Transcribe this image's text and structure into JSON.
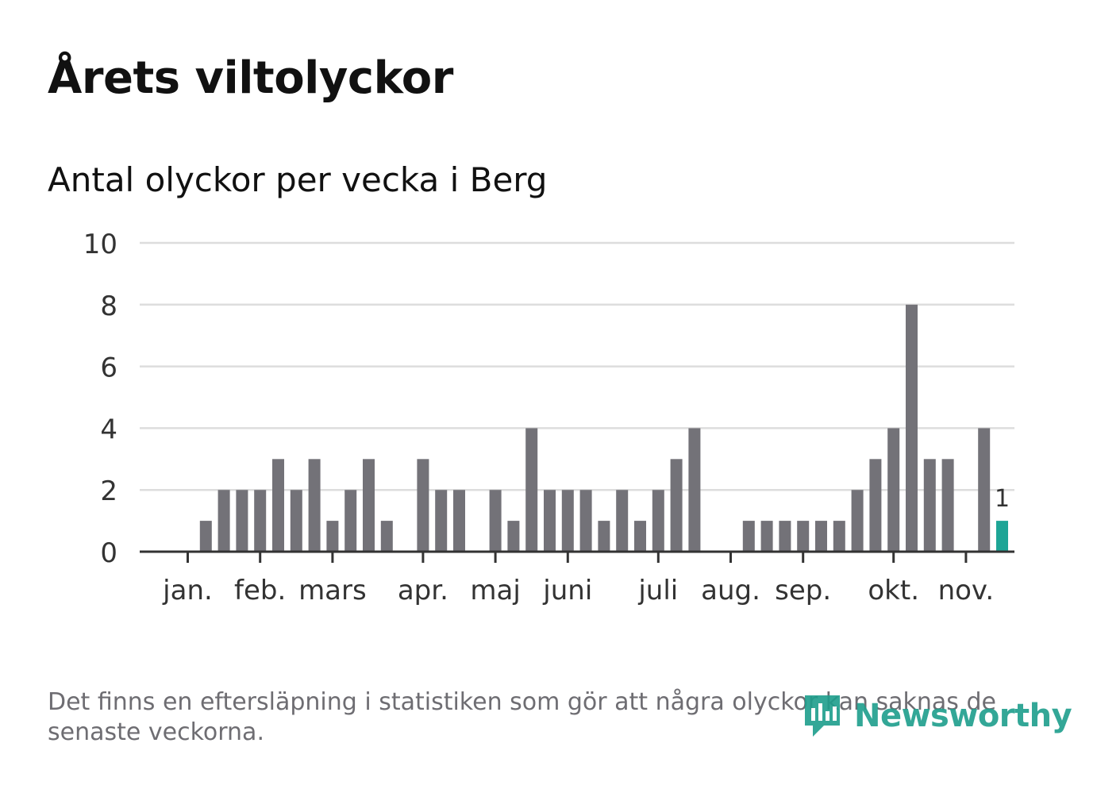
{
  "title": "Årets viltolyckor",
  "subtitle": "Antal olyckor per vecka i Berg",
  "footnote": "Det finns en eftersläpning i statistiken som gör att några olyckor kan saknas de senaste veckorna.",
  "brand": {
    "name": "Newsworthy",
    "color": "#1e9e8c"
  },
  "colors": {
    "bar": "#737278",
    "highlight": "#1ea596",
    "grid": "#dddddd",
    "axis": "#333333"
  },
  "chart_data": {
    "type": "bar",
    "title": "Årets viltolyckor",
    "subtitle": "Antal olyckor per vecka i Berg",
    "xlabel": "",
    "ylabel": "",
    "ylim": [
      0,
      10
    ],
    "yticks": [
      0,
      2,
      4,
      6,
      8,
      10
    ],
    "weeks": [
      1,
      2,
      3,
      4,
      5,
      6,
      7,
      8,
      9,
      10,
      11,
      12,
      13,
      14,
      15,
      16,
      17,
      18,
      19,
      20,
      21,
      22,
      23,
      24,
      25,
      26,
      27,
      28,
      29,
      30,
      31,
      32,
      33,
      34,
      35,
      36,
      37,
      38,
      39,
      40,
      41,
      42,
      43,
      44,
      45,
      46,
      47
    ],
    "values": [
      0,
      1,
      2,
      2,
      2,
      3,
      2,
      3,
      1,
      2,
      3,
      1,
      0,
      3,
      2,
      2,
      0,
      2,
      1,
      4,
      2,
      2,
      2,
      1,
      2,
      1,
      2,
      3,
      4,
      0,
      0,
      1,
      1,
      1,
      1,
      1,
      1,
      2,
      3,
      4,
      8,
      3,
      3,
      0,
      4,
      1,
      null
    ],
    "highlight_week": 46,
    "highlight_label": "1",
    "month_ticks": [
      {
        "label": "jan.",
        "week": 1
      },
      {
        "label": "feb.",
        "week": 5
      },
      {
        "label": "mars",
        "week": 9
      },
      {
        "label": "apr.",
        "week": 14
      },
      {
        "label": "maj",
        "week": 18
      },
      {
        "label": "juni",
        "week": 22
      },
      {
        "label": "juli",
        "week": 27
      },
      {
        "label": "aug.",
        "week": 31
      },
      {
        "label": "sep.",
        "week": 35
      },
      {
        "label": "okt.",
        "week": 40
      },
      {
        "label": "nov.",
        "week": 44
      }
    ]
  }
}
